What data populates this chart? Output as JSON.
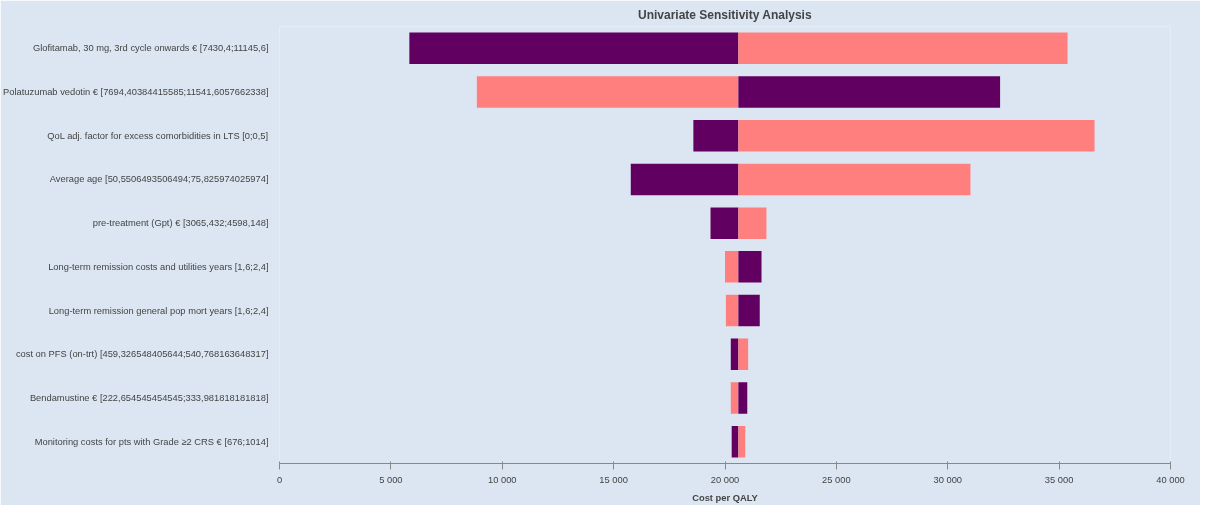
{
  "chart_data": {
    "type": "bar",
    "orientation": "horizontal",
    "title": "Univariate Sensitivity Analysis",
    "xlabel": "Cost per QALY",
    "categories": [
      "Glofitamab, 30 mg, 3rd cycle onwards € [7430,4;11145,6]",
      "Polatuzumab vedotin € [7694,40384415585;11541,6057662338]",
      "QoL adj. factor for excess comorbidities in LTS [0;0,5]",
      "Average age [50,5506493506494;75,825974025974]",
      "pre-treatment (Gpt) € [3065,432;4598,148]",
      "Long-term remission costs and utilities years [1,6;2,4]",
      "Long-term remission general pop mort years [1,6;2,4]",
      "cost on PFS (on-trt) [459,326548405644;540,768163648317]",
      "Bendamustine € [222,654545454545;333,981818181818]",
      "Monitoring costs for pts with Grade ≥2 CRS € [676;1014]"
    ],
    "series": [
      {
        "colors": [
          "#620062",
          "#ff7f7f",
          "#620062",
          "#620062",
          "#620062",
          "#ff7f7f",
          "#ff7f7f",
          "#620062",
          "#ff7f7f",
          "#620062"
        ],
        "base": [
          5830,
          8860,
          18580,
          15770,
          19350,
          20000,
          20040,
          20260,
          20260,
          20300
        ],
        "values": [
          14770,
          11740,
          2020,
          4830,
          1250,
          600,
          560,
          340,
          340,
          300
        ]
      },
      {
        "colors": [
          "#ff7f7f",
          "#620062",
          "#ff7f7f",
          "#ff7f7f",
          "#ff7f7f",
          "#620062",
          "#620062",
          "#ff7f7f",
          "#620062",
          "#ff7f7f"
        ],
        "base": [
          20600,
          20600,
          20600,
          20600,
          20600,
          20600,
          20600,
          20600,
          20600,
          20600
        ],
        "values": [
          14780,
          11750,
          15990,
          10420,
          1260,
          1040,
          960,
          440,
          400,
          310
        ]
      }
    ],
    "xlim": [
      0,
      40000
    ],
    "xticks": [
      {
        "value": 0,
        "label": "0"
      },
      {
        "value": 5000,
        "label": "5 000"
      },
      {
        "value": 10000,
        "label": "10 000"
      },
      {
        "value": 15000,
        "label": "15 000"
      },
      {
        "value": 20000,
        "label": "20 000"
      },
      {
        "value": 25000,
        "label": "25 000"
      },
      {
        "value": 30000,
        "label": "30 000"
      },
      {
        "value": 35000,
        "label": "35 000"
      },
      {
        "value": 40000,
        "label": "40 000"
      }
    ],
    "grid": false
  }
}
